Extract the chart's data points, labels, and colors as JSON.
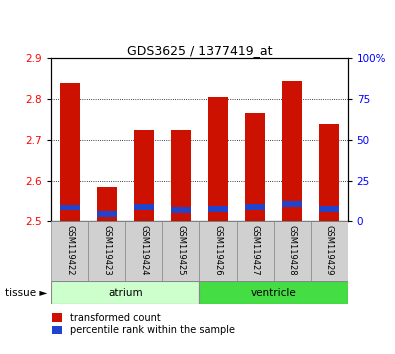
{
  "title": "GDS3625 / 1377419_at",
  "samples": [
    "GSM119422",
    "GSM119423",
    "GSM119424",
    "GSM119425",
    "GSM119426",
    "GSM119427",
    "GSM119428",
    "GSM119429"
  ],
  "red_top": [
    2.84,
    2.585,
    2.725,
    2.725,
    2.805,
    2.765,
    2.845,
    2.74
  ],
  "blue_bottom": [
    2.528,
    2.51,
    2.528,
    2.52,
    2.523,
    2.528,
    2.535,
    2.523
  ],
  "blue_top": [
    2.54,
    2.524,
    2.542,
    2.534,
    2.538,
    2.542,
    2.55,
    2.538
  ],
  "base": 2.5,
  "ylim_left": [
    2.5,
    2.9
  ],
  "ylim_right": [
    0,
    100
  ],
  "yticks_left": [
    2.5,
    2.6,
    2.7,
    2.8,
    2.9
  ],
  "yticks_right": [
    0,
    25,
    50,
    75,
    100
  ],
  "red_color": "#cc1100",
  "blue_color": "#2244cc",
  "bar_width": 0.55,
  "legend_red": "transformed count",
  "legend_blue": "percentile rank within the sample",
  "tissue_label": "tissue",
  "atrium_color": "#ccffcc",
  "ventricle_color": "#44dd44",
  "sample_bg_color": "#d0d0d0",
  "grid_color": "#000000"
}
